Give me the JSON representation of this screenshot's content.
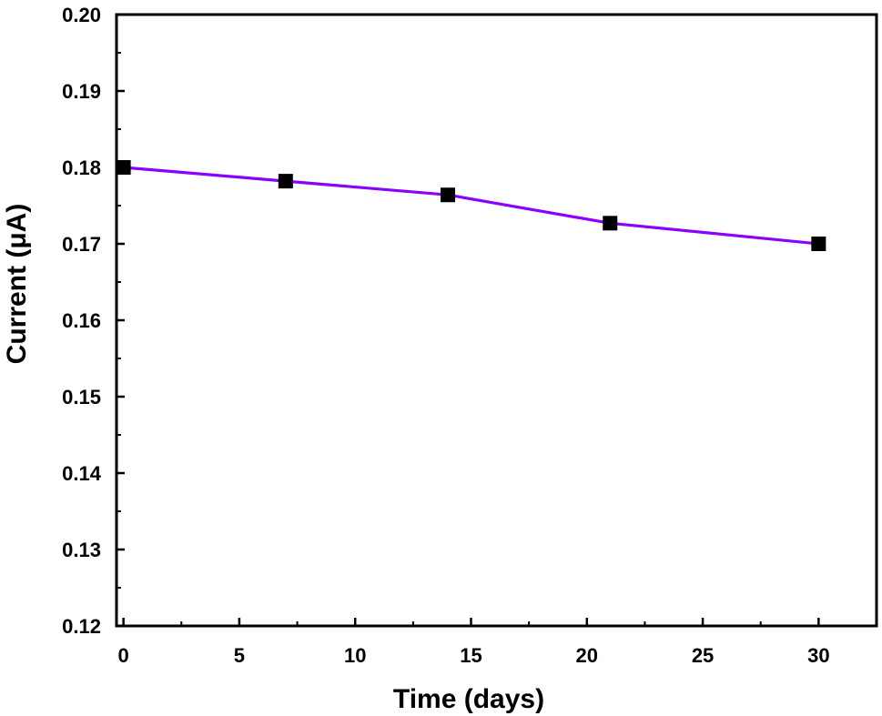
{
  "chart_data": {
    "type": "line",
    "title": "",
    "xlabel": "Time (days)",
    "ylabel": "Current (μA)",
    "xlim": [
      -0.3,
      32.5
    ],
    "ylim": [
      0.12,
      0.2
    ],
    "xticks": [
      0,
      5,
      10,
      15,
      20,
      25,
      30
    ],
    "xtick_labels": [
      "0",
      "5",
      "10",
      "15",
      "20",
      "25",
      "30"
    ],
    "yticks": [
      0.12,
      0.13,
      0.14,
      0.15,
      0.16,
      0.17,
      0.18,
      0.19,
      0.2
    ],
    "ytick_labels": [
      "0.12",
      "0.13",
      "0.14",
      "0.15",
      "0.16",
      "0.17",
      "0.18",
      "0.19",
      "0.20"
    ],
    "grid": false,
    "legend": "none",
    "series": [
      {
        "x": [
          0,
          7,
          14,
          21,
          30
        ],
        "y": [
          0.18,
          0.1782,
          0.1764,
          0.1727,
          0.17
        ],
        "line_color": "#8B00FF",
        "marker": "square",
        "marker_color": "#000000"
      }
    ]
  }
}
